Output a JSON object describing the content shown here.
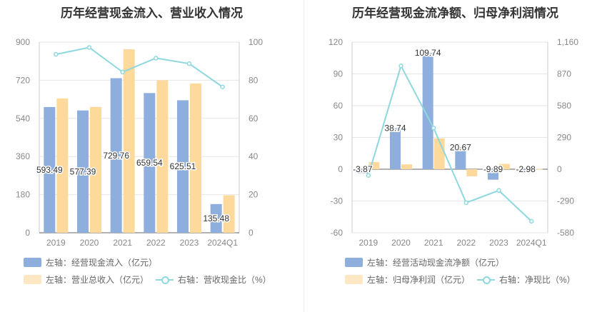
{
  "chart_data": [
    {
      "type": "bar",
      "title": "历年经营现金流入、营业收入情况",
      "categories": [
        "2019",
        "2020",
        "2021",
        "2022",
        "2023",
        "2024Q1"
      ],
      "ylim_left": [
        0,
        900
      ],
      "yticks_left": [
        "0",
        "180",
        "360",
        "540",
        "720",
        "900"
      ],
      "ylim_right": [
        0,
        100
      ],
      "yticks_right": [
        "0",
        "20",
        "40",
        "60",
        "80",
        "100"
      ],
      "series": [
        {
          "name": "左轴：经营现金流入（亿元）",
          "kind": "bar",
          "axis": "left",
          "color": "#8eaedd",
          "values": [
            593.49,
            577.39,
            729.76,
            659.54,
            625.51,
            135.48
          ],
          "labels": [
            "593.49",
            "577.39",
            "729.76",
            "659.54",
            "625.51",
            "135.48"
          ]
        },
        {
          "name": "左轴：营业总收入（亿元）",
          "kind": "bar",
          "axis": "left",
          "color": "#fed99c",
          "values": [
            634,
            594,
            866,
            720,
            705,
            177
          ]
        },
        {
          "name": "右轴：营收现金比（%）",
          "kind": "line",
          "axis": "right",
          "color": "#8ed8de",
          "values": [
            93.6,
            97.2,
            84.3,
            91.6,
            88.7,
            76.5
          ]
        }
      ],
      "grid": true
    },
    {
      "type": "bar",
      "title": "历年经营现金流净额、归母净利润情况",
      "categories": [
        "2019",
        "2020",
        "2021",
        "2022",
        "2023",
        "2024Q1"
      ],
      "ylim_left": [
        -60,
        120
      ],
      "yticks_left": [
        "-60",
        "-30",
        "0",
        "30",
        "60",
        "90",
        "120"
      ],
      "ylim_right": [
        -580,
        1160
      ],
      "yticks_right": [
        "-580",
        "-290",
        "0",
        "290",
        "580",
        "870",
        "1,160"
      ],
      "series": [
        {
          "name": "左轴：经营活动现金流净额（亿元）",
          "kind": "bar",
          "axis": "left",
          "color": "#8eaedd",
          "values": [
            -3.87,
            38.74,
            109.74,
            20.67,
            -9.89,
            -2.98
          ],
          "labels": [
            "-3.87",
            "38.74",
            "109.74",
            "20.67",
            "-9.89",
            "-2.98"
          ]
        },
        {
          "name": "左轴：归母净利润（亿元）",
          "kind": "bar",
          "axis": "left",
          "color": "#fed99c",
          "values": [
            6.8,
            4.6,
            29.2,
            -6.7,
            5.0,
            0.4
          ]
        },
        {
          "name": "右轴：净现比（%）",
          "kind": "line",
          "axis": "right",
          "color": "#8ed8de",
          "values": [
            -57,
            943,
            376,
            -306,
            -194,
            -475
          ]
        }
      ],
      "grid": true
    }
  ]
}
